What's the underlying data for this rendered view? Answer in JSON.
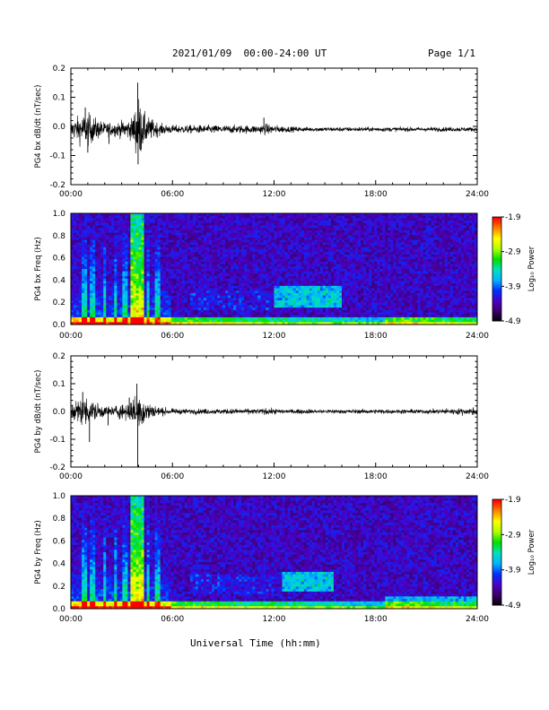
{
  "header": {
    "title": "2021/01/09  00:00-24:00 UT",
    "page": "Page 1/1"
  },
  "xaxis": {
    "label": "Universal Time (hh:mm)",
    "ticks": [
      "00:00",
      "06:00",
      "12:00",
      "18:00",
      "24:00"
    ],
    "range_hours": [
      0,
      24
    ]
  },
  "colors": {
    "trace": "#000000",
    "spectrogram_background": "#2b0a3d",
    "colormap": [
      "#000000",
      "#3a0066",
      "#4b00c8",
      "#0030ff",
      "#00b4ff",
      "#00e0c0",
      "#00e000",
      "#b0ff00",
      "#ffff00",
      "#ff8000",
      "#ff0000"
    ]
  },
  "chart_data": [
    {
      "type": "line",
      "name": "bx-waveform",
      "ylabel": "PG4 bx dB/dt (nT/sec)",
      "ylim": [
        -0.2,
        0.2
      ],
      "yticks": [
        "0.2",
        "0.1",
        "0.0",
        "-0.1",
        "-0.2"
      ],
      "ytick_values": [
        0.2,
        0.1,
        0.0,
        -0.1,
        -0.2
      ],
      "baseline": -0.01,
      "envelope": {
        "x_hours": [
          0,
          0.5,
          1.0,
          1.5,
          2.0,
          2.5,
          3.0,
          3.6,
          4.0,
          4.3,
          4.7,
          5.3,
          6.0,
          7.0,
          8.0,
          9.0,
          10.0,
          11.0,
          11.5,
          12.0,
          13.0,
          14.0,
          15.0,
          16.0,
          17.0,
          18.0,
          19.0,
          20.0,
          21.0,
          22.0,
          23.0,
          24.0
        ],
        "amplitude": [
          0.03,
          0.05,
          0.06,
          0.04,
          0.025,
          0.025,
          0.03,
          0.04,
          0.12,
          0.06,
          0.04,
          0.02,
          0.015,
          0.015,
          0.015,
          0.015,
          0.015,
          0.015,
          0.02,
          0.015,
          0.01,
          0.008,
          0.008,
          0.008,
          0.008,
          0.008,
          0.008,
          0.008,
          0.008,
          0.008,
          0.008,
          0.008
        ]
      },
      "spikes": [
        {
          "x_hours": 3.95,
          "y": 0.15
        },
        {
          "x_hours": 3.97,
          "y": -0.13
        },
        {
          "x_hours": 0.85,
          "y": 0.065
        },
        {
          "x_hours": 1.0,
          "y": -0.09
        },
        {
          "x_hours": 2.25,
          "y": -0.06
        },
        {
          "x_hours": 11.4,
          "y": 0.03
        }
      ]
    },
    {
      "type": "heatmap",
      "name": "bx-spectrogram",
      "ylabel": "PG4 bx Freq (Hz)",
      "ylim": [
        0.0,
        1.0
      ],
      "yticks": [
        "1.0",
        "0.8",
        "0.6",
        "0.4",
        "0.2",
        "0.0"
      ],
      "ytick_values": [
        1.0,
        0.8,
        0.6,
        0.4,
        0.2,
        0.0
      ],
      "colorbar": {
        "label": "Log₁₀ Power",
        "range": [
          -4.9,
          -1.9
        ],
        "ticks": [
          "-1.9",
          "-2.9",
          "-3.9",
          "-4.9"
        ],
        "tick_values": [
          -1.9,
          -2.9,
          -3.9,
          -4.9
        ]
      },
      "features": {
        "burst_hours": [
          3.5,
          4.3
        ],
        "lines_hours": [
          0.8,
          1.3,
          2.0,
          2.6,
          3.2,
          4.6,
          5.1
        ],
        "hiss_band": {
          "hours": [
            12.0,
            16.0
          ],
          "freq": [
            0.15,
            0.35
          ]
        },
        "lowband_end_hours": 24.0,
        "late_band": {
          "hours": [
            18.5,
            24.0
          ],
          "freq": [
            0.0,
            0.06
          ]
        }
      }
    },
    {
      "type": "line",
      "name": "by-waveform",
      "ylabel": "PG4 by dB/dt (nT/sec)",
      "ylim": [
        -0.2,
        0.2
      ],
      "yticks": [
        "0.2",
        "0.1",
        "0.0",
        "-0.1",
        "-0.2"
      ],
      "ytick_values": [
        0.2,
        0.1,
        0.0,
        -0.1,
        -0.2
      ],
      "baseline": 0.0,
      "envelope": {
        "x_hours": [
          0,
          0.5,
          1.0,
          1.5,
          2.0,
          2.5,
          3.0,
          3.6,
          4.0,
          4.3,
          4.7,
          5.3,
          6.0,
          7.0,
          8.0,
          9.0,
          10.0,
          11.0,
          11.5,
          12.0,
          13.0,
          14.0,
          15.0,
          16.0,
          17.0,
          18.0,
          19.0,
          20.0,
          21.0,
          22.0,
          23.0,
          24.0
        ],
        "amplitude": [
          0.03,
          0.05,
          0.05,
          0.035,
          0.02,
          0.02,
          0.03,
          0.04,
          0.08,
          0.05,
          0.03,
          0.015,
          0.01,
          0.01,
          0.01,
          0.01,
          0.01,
          0.01,
          0.012,
          0.01,
          0.008,
          0.008,
          0.008,
          0.008,
          0.008,
          0.008,
          0.008,
          0.008,
          0.008,
          0.01,
          0.012,
          0.015
        ]
      },
      "spikes": [
        {
          "x_hours": 3.9,
          "y": 0.1
        },
        {
          "x_hours": 3.95,
          "y": -0.2
        },
        {
          "x_hours": 0.7,
          "y": 0.07
        },
        {
          "x_hours": 1.1,
          "y": -0.11
        },
        {
          "x_hours": 2.2,
          "y": -0.05
        },
        {
          "x_hours": 3.45,
          "y": 0.05
        }
      ]
    },
    {
      "type": "heatmap",
      "name": "by-spectrogram",
      "ylabel": "PG4 by Freq (Hz)",
      "ylim": [
        0.0,
        1.0
      ],
      "yticks": [
        "1.0",
        "0.8",
        "0.6",
        "0.4",
        "0.2",
        "0.0"
      ],
      "ytick_values": [
        1.0,
        0.8,
        0.6,
        0.4,
        0.2,
        0.0
      ],
      "colorbar": {
        "label": "Log₁₀ Power",
        "range": [
          -4.9,
          -1.9
        ],
        "ticks": [
          "-1.9",
          "-2.9",
          "-3.9",
          "-4.9"
        ],
        "tick_values": [
          -1.9,
          -2.9,
          -3.9,
          -4.9
        ]
      },
      "features": {
        "burst_hours": [
          3.5,
          4.3
        ],
        "lines_hours": [
          0.8,
          1.3,
          2.0,
          2.6,
          3.2,
          4.6,
          5.1
        ],
        "hiss_band": {
          "hours": [
            12.5,
            15.5
          ],
          "freq": [
            0.15,
            0.32
          ]
        },
        "lowband_end_hours": 24.0,
        "late_band": {
          "hours": [
            18.5,
            24.0
          ],
          "freq": [
            0.0,
            0.1
          ]
        }
      }
    }
  ]
}
